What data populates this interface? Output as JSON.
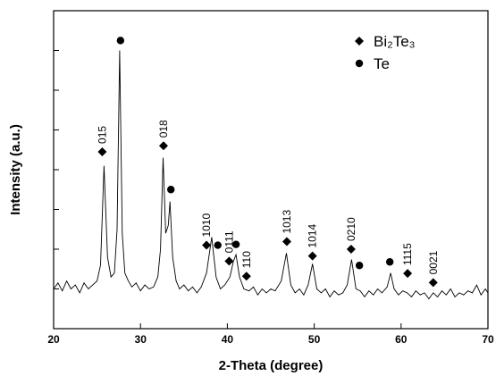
{
  "chart_data": {
    "type": "line",
    "color": "#000000",
    "xlabel": "2-Theta (degree)",
    "ylabel": "Intensity (a.u.)",
    "xlim": [
      20,
      70
    ],
    "xticks": [
      20,
      30,
      40,
      50,
      60,
      70
    ],
    "ylim": [
      0,
      8
    ],
    "yticks": [
      1,
      2,
      3,
      4,
      5,
      6,
      7
    ],
    "ytick_labels": false,
    "x": [
      20,
      20.5,
      21,
      21.5,
      22,
      22.5,
      23,
      23.5,
      24,
      24.5,
      25,
      25.4,
      25.8,
      26.2,
      26.6,
      27,
      27.3,
      27.6,
      27.9,
      28.2,
      28.6,
      29,
      29.5,
      30,
      30.5,
      31,
      31.5,
      32,
      32.3,
      32.6,
      32.9,
      33.2,
      33.4,
      33.7,
      34.1,
      34.5,
      35,
      35.5,
      36,
      36.5,
      37,
      37.6,
      38.2,
      38.7,
      39.2,
      39.7,
      40.3,
      40.7,
      41,
      41.4,
      41.9,
      42.5,
      43,
      43.5,
      44,
      44.5,
      45,
      45.5,
      46.2,
      46.8,
      47.3,
      47.8,
      48.3,
      48.8,
      49.3,
      49.8,
      50.3,
      50.8,
      51.3,
      51.8,
      52.3,
      52.8,
      53.3,
      53.8,
      54.3,
      54.8,
      55.3,
      55.8,
      56.3,
      56.8,
      57.3,
      57.8,
      58.4,
      58.8,
      59.2,
      59.7,
      60.2,
      60.7,
      61.2,
      61.7,
      62.2,
      62.7,
      63.2,
      63.7,
      64.2,
      64.7,
      65.2,
      65.7,
      66.2,
      66.7,
      67.2,
      67.7,
      68.2,
      68.7,
      69.2,
      69.7,
      70
    ],
    "values": [
      1.0,
      1.15,
      0.95,
      1.2,
      1.0,
      1.1,
      0.9,
      1.15,
      1.0,
      1.1,
      1.2,
      1.6,
      4.1,
      1.8,
      1.3,
      1.4,
      2.5,
      7.0,
      2.4,
      1.4,
      1.2,
      1.05,
      1.15,
      0.95,
      1.1,
      1.0,
      1.05,
      1.3,
      2.0,
      4.3,
      2.4,
      2.6,
      3.2,
      1.8,
      1.2,
      1.0,
      1.1,
      0.95,
      1.05,
      0.9,
      1.05,
      1.4,
      2.3,
      1.3,
      1.0,
      1.1,
      1.3,
      1.7,
      1.86,
      1.3,
      1.0,
      0.95,
      1.05,
      0.85,
      1.0,
      0.9,
      1.0,
      0.95,
      1.2,
      1.9,
      1.1,
      0.9,
      1.0,
      0.85,
      1.1,
      1.63,
      1.0,
      0.9,
      1.0,
      0.8,
      0.95,
      0.85,
      0.9,
      1.1,
      1.74,
      1.0,
      0.95,
      0.8,
      0.95,
      0.85,
      1.0,
      0.9,
      1.05,
      1.4,
      1.0,
      0.85,
      0.95,
      0.9,
      0.8,
      0.95,
      0.85,
      0.9,
      0.75,
      0.9,
      0.8,
      0.95,
      0.85,
      1.0,
      0.8,
      0.9,
      0.85,
      0.95,
      0.9,
      1.1,
      0.85,
      1.0,
      0.9
    ],
    "phases": [
      {
        "name": "Bi₂Te₃",
        "marker": "diamond"
      },
      {
        "name": "Te",
        "marker": "circle"
      }
    ],
    "peak_markers": [
      {
        "x": 25.6,
        "y": 4.45,
        "phase": 0,
        "label": "015"
      },
      {
        "x": 27.7,
        "y": 7.25,
        "phase": 1
      },
      {
        "x": 32.65,
        "y": 4.6,
        "phase": 0,
        "label": "018"
      },
      {
        "x": 33.5,
        "y": 3.5,
        "phase": 1
      },
      {
        "x": 37.6,
        "y": 2.1,
        "phase": 0,
        "label": "1010"
      },
      {
        "x": 38.9,
        "y": 2.1,
        "phase": 1
      },
      {
        "x": 41.0,
        "y": 2.12,
        "phase": 1
      },
      {
        "x": 40.2,
        "y": 1.7,
        "phase": 0,
        "label": "0111"
      },
      {
        "x": 42.2,
        "y": 1.32,
        "phase": 0,
        "label": "110"
      },
      {
        "x": 46.85,
        "y": 2.19,
        "phase": 0,
        "label": "1013"
      },
      {
        "x": 49.8,
        "y": 1.83,
        "phase": 0,
        "label": "1014"
      },
      {
        "x": 54.25,
        "y": 2.0,
        "phase": 0,
        "label": "0210"
      },
      {
        "x": 55.2,
        "y": 1.59,
        "phase": 1
      },
      {
        "x": 58.7,
        "y": 1.68,
        "phase": 1
      },
      {
        "x": 60.75,
        "y": 1.39,
        "phase": 0,
        "label": "1115"
      },
      {
        "x": 63.7,
        "y": 1.16,
        "phase": 0,
        "label": "0021"
      }
    ]
  }
}
